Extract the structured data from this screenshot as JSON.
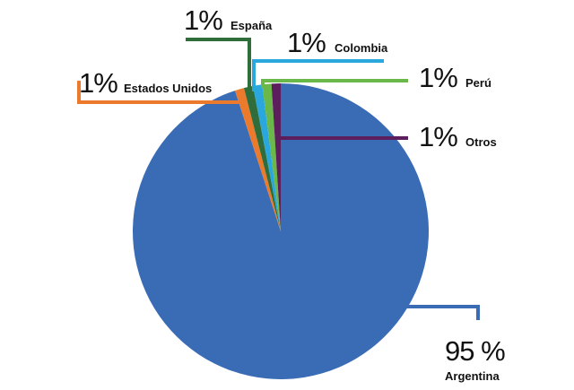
{
  "chart_data": {
    "type": "pie",
    "title": "",
    "slices": [
      {
        "label": "Argentina",
        "value": 95,
        "display": "95 %",
        "color": "#3a6cb6"
      },
      {
        "label": "Estados Unidos",
        "value": 1,
        "display": "1%",
        "color": "#ec7a2d"
      },
      {
        "label": "España",
        "value": 1,
        "display": "1%",
        "color": "#2f6e3a"
      },
      {
        "label": "Colombia",
        "value": 1,
        "display": "1%",
        "color": "#2aa7dc"
      },
      {
        "label": "Perú",
        "value": 1,
        "display": "1%",
        "color": "#6ab74a"
      },
      {
        "label": "Otros",
        "value": 1,
        "display": "1%",
        "color": "#5c1e5c"
      }
    ]
  }
}
